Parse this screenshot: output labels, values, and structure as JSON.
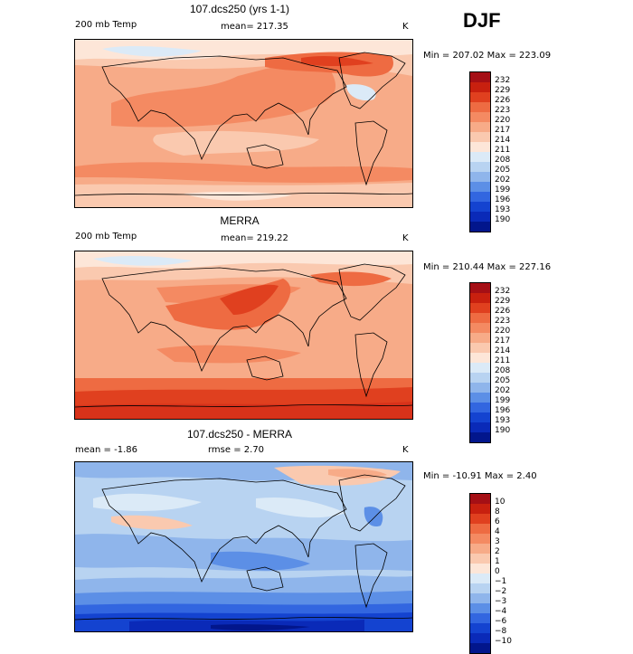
{
  "season": "DJF",
  "panels": [
    {
      "title": "107.dcs250 (yrs 1-1)",
      "field": "200 mb Temp",
      "stat": "mean= 217.35",
      "units": "K",
      "range": "Min = 207.02  Max = 223.09",
      "levels": [
        "232",
        "229",
        "226",
        "223",
        "220",
        "217",
        "214",
        "211",
        "208",
        "205",
        "202",
        "199",
        "196",
        "193",
        "190"
      ],
      "colors": [
        "#a50f15",
        "#c8200f",
        "#e0401f",
        "#ee6b42",
        "#f48a62",
        "#f7ab88",
        "#fac9af",
        "#fde6d8",
        "#dbeaf7",
        "#b8d3f1",
        "#8fb5eb",
        "#5c8fe6",
        "#3266e0",
        "#1443d0",
        "#0a2ab8",
        "#02168c"
      ]
    },
    {
      "title": "MERRA",
      "field": "200 mb Temp",
      "stat": "mean= 219.22",
      "units": "K",
      "range": "Min = 210.44  Max = 227.16",
      "levels": [
        "232",
        "229",
        "226",
        "223",
        "220",
        "217",
        "214",
        "211",
        "208",
        "205",
        "202",
        "199",
        "196",
        "193",
        "190"
      ],
      "colors": [
        "#a50f15",
        "#c8200f",
        "#e0401f",
        "#ee6b42",
        "#f48a62",
        "#f7ab88",
        "#fac9af",
        "#fde6d8",
        "#dbeaf7",
        "#b8d3f1",
        "#8fb5eb",
        "#5c8fe6",
        "#3266e0",
        "#1443d0",
        "#0a2ab8",
        "#02168c"
      ]
    },
    {
      "title": "107.dcs250 - MERRA",
      "field": "mean =   -1.86",
      "stat": "rmse =    2.70",
      "units": "K",
      "range": "Min = -10.91  Max =    2.40",
      "levels": [
        "10",
        "8",
        "6",
        "4",
        "3",
        "2",
        "1",
        "0",
        "−1",
        "−2",
        "−3",
        "−4",
        "−6",
        "−8",
        "−10"
      ],
      "colors": [
        "#a50f15",
        "#c8200f",
        "#e0401f",
        "#ee6b42",
        "#f48a62",
        "#f7ab88",
        "#fac9af",
        "#fde6d8",
        "#dbeaf7",
        "#b8d3f1",
        "#8fb5eb",
        "#5c8fe6",
        "#3266e0",
        "#1443d0",
        "#0a2ab8",
        "#02168c"
      ]
    }
  ]
}
